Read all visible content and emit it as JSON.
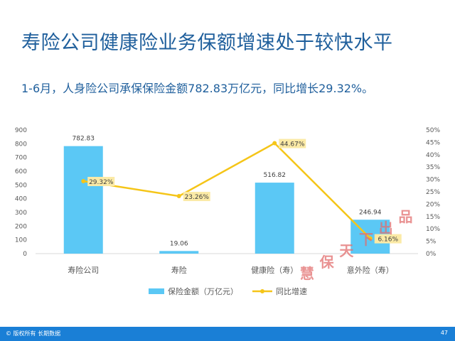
{
  "slide": {
    "title": "寿险公司健康险业务保额增速处于较快水平",
    "subtitle": "1-6月，人身险公司承保保险金额782.83万亿元，同比增长29.32%。"
  },
  "footer": {
    "copyright": "© 版权所有 长期数据",
    "page_number": "47"
  },
  "watermark": [
    "慧",
    "保",
    "天",
    "下",
    "出",
    "品"
  ],
  "colors": {
    "bar": "#5bc8f5",
    "line": "#f5c518",
    "label_bg": "#fbeaa6",
    "axis_text": "#595959",
    "grid": "#d9d9d9"
  },
  "chart_data": {
    "type": "bar",
    "categories": [
      "寿险公司",
      "寿险",
      "健康险（寿）",
      "意外险（寿）"
    ],
    "series": [
      {
        "name": "保险金额（万亿元）",
        "type": "bar",
        "axis": "left",
        "values": [
          782.83,
          19.06,
          516.82,
          246.94
        ],
        "labels": [
          "782.83",
          "19.06",
          "516.82",
          "246.94"
        ]
      },
      {
        "name": "同比增速",
        "type": "line",
        "axis": "right",
        "values": [
          29.32,
          23.26,
          44.67,
          6.16
        ],
        "labels": [
          "29.32%",
          "23.26%",
          "44.67%",
          "6.16%"
        ]
      }
    ],
    "y_left": {
      "ylim": [
        0,
        900
      ],
      "ticks": [
        "0",
        "100",
        "200",
        "300",
        "400",
        "500",
        "600",
        "700",
        "800",
        "900"
      ]
    },
    "y_right": {
      "ylim": [
        0,
        50
      ],
      "ticks": [
        "0%",
        "5%",
        "10%",
        "15%",
        "20%",
        "25%",
        "30%",
        "35%",
        "40%",
        "45%",
        "50%"
      ]
    },
    "grid": false,
    "legend_position": "bottom"
  }
}
